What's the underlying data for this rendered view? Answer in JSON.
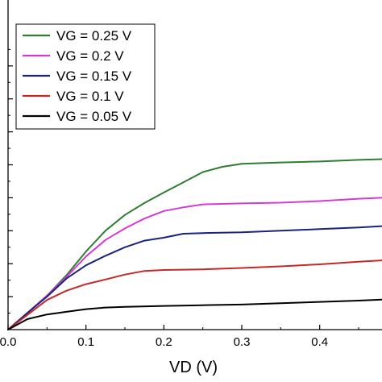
{
  "chart_data": {
    "type": "line",
    "title": "",
    "xlabel": "VD (V)",
    "ylabel": "",
    "xlim": [
      0.0,
      0.48
    ],
    "ylim": [
      0.0,
      1.0
    ],
    "xticks": [
      0.0,
      0.1,
      0.2,
      0.3,
      0.4
    ],
    "xtick_labels": [
      "0.0",
      "0.1",
      "0.2",
      "0.3",
      "0.4"
    ],
    "yticks": [
      0.1,
      0.2,
      0.3,
      0.4,
      0.5,
      0.6,
      0.7,
      0.8
    ],
    "grid": false,
    "legend_position": "top-left",
    "series": [
      {
        "name": "VG = 0.25 V",
        "color": "#2e7d32",
        "x": [
          0,
          0.025,
          0.05,
          0.075,
          0.1,
          0.125,
          0.15,
          0.175,
          0.2,
          0.225,
          0.25,
          0.275,
          0.3,
          0.35,
          0.4,
          0.45,
          0.48
        ],
        "y": [
          0,
          0.051,
          0.103,
          0.165,
          0.237,
          0.3,
          0.348,
          0.384,
          0.416,
          0.447,
          0.478,
          0.494,
          0.503,
          0.507,
          0.51,
          0.515,
          0.517
        ]
      },
      {
        "name": "VG = 0.2 V",
        "color": "#d63ad6",
        "x": [
          0,
          0.025,
          0.05,
          0.075,
          0.1,
          0.125,
          0.15,
          0.175,
          0.2,
          0.225,
          0.25,
          0.3,
          0.35,
          0.4,
          0.45,
          0.48
        ],
        "y": [
          0,
          0.051,
          0.103,
          0.16,
          0.222,
          0.272,
          0.307,
          0.337,
          0.36,
          0.371,
          0.38,
          0.383,
          0.385,
          0.39,
          0.397,
          0.4
        ]
      },
      {
        "name": "VG = 0.15 V",
        "color": "#1a237e",
        "x": [
          0,
          0.025,
          0.05,
          0.075,
          0.1,
          0.125,
          0.15,
          0.175,
          0.2,
          0.225,
          0.25,
          0.3,
          0.35,
          0.4,
          0.45,
          0.48
        ],
        "y": [
          0,
          0.051,
          0.1,
          0.155,
          0.195,
          0.224,
          0.25,
          0.27,
          0.279,
          0.291,
          0.293,
          0.295,
          0.3,
          0.305,
          0.31,
          0.314
        ]
      },
      {
        "name": "VG = 0.1 V",
        "color": "#c62828",
        "x": [
          0,
          0.025,
          0.05,
          0.075,
          0.1,
          0.125,
          0.15,
          0.175,
          0.2,
          0.25,
          0.3,
          0.35,
          0.4,
          0.45,
          0.48
        ],
        "y": [
          0,
          0.045,
          0.09,
          0.118,
          0.138,
          0.152,
          0.167,
          0.178,
          0.181,
          0.183,
          0.187,
          0.192,
          0.198,
          0.206,
          0.21
        ]
      },
      {
        "name": "VG = 0.05 V",
        "color": "#000000",
        "x": [
          0,
          0.025,
          0.05,
          0.075,
          0.1,
          0.125,
          0.15,
          0.2,
          0.25,
          0.3,
          0.35,
          0.4,
          0.45,
          0.48
        ],
        "y": [
          0,
          0.032,
          0.046,
          0.054,
          0.062,
          0.067,
          0.069,
          0.072,
          0.074,
          0.076,
          0.08,
          0.084,
          0.088,
          0.091
        ]
      }
    ]
  }
}
